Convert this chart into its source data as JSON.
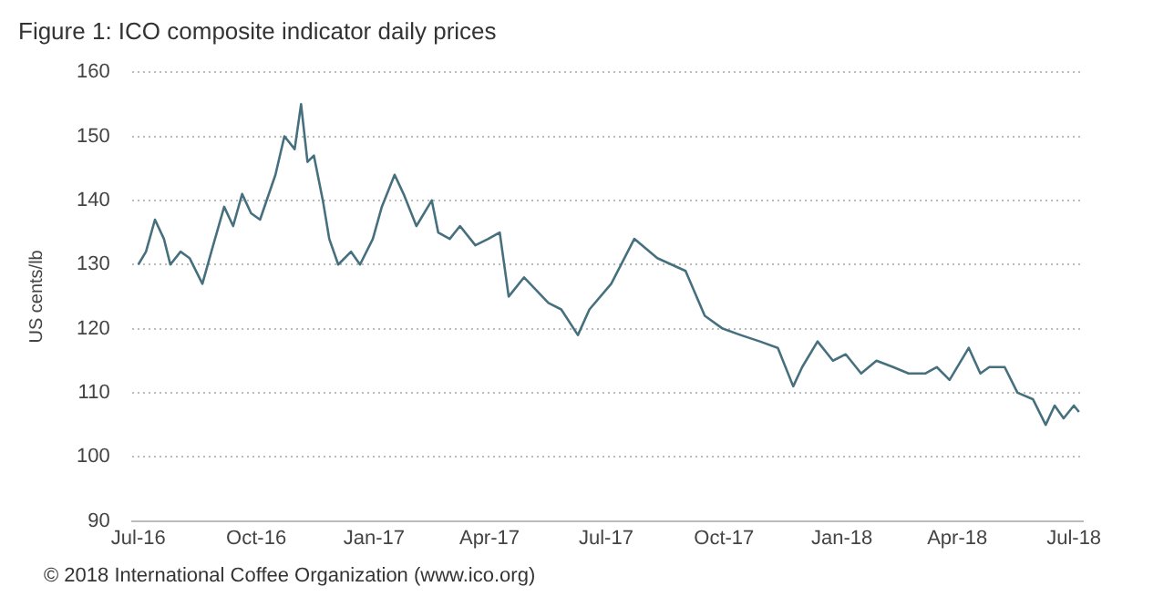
{
  "chart_data": {
    "type": "line",
    "title": "Figure 1: ICO composite indicator daily prices",
    "ylabel": "US cents/lb",
    "annotations": [
      "© 2018 International Coffee Organization (www.ico.org)"
    ],
    "x": [
      "2016-07-01",
      "2016-07-07",
      "2016-07-14",
      "2016-07-21",
      "2016-07-26",
      "2016-08-03",
      "2016-08-10",
      "2016-08-20",
      "2016-08-27",
      "2016-09-06",
      "2016-09-13",
      "2016-09-20",
      "2016-09-27",
      "2016-10-04",
      "2016-10-16",
      "2016-10-23",
      "2016-10-31",
      "2016-11-05",
      "2016-11-10",
      "2016-11-15",
      "2016-11-22",
      "2016-11-27",
      "2016-12-04",
      "2016-12-14",
      "2016-12-21",
      "2016-12-31",
      "2017-01-07",
      "2017-01-17",
      "2017-01-24",
      "2017-02-03",
      "2017-02-15",
      "2017-02-20",
      "2017-03-01",
      "2017-03-09",
      "2017-03-21",
      "2017-03-31",
      "2017-04-09",
      "2017-04-16",
      "2017-04-28",
      "2017-05-17",
      "2017-05-27",
      "2017-06-09",
      "2017-06-18",
      "2017-07-05",
      "2017-07-23",
      "2017-08-10",
      "2017-09-01",
      "2017-09-16",
      "2017-09-30",
      "2017-10-14",
      "2017-10-29",
      "2017-11-12",
      "2017-11-24",
      "2017-12-01",
      "2017-12-13",
      "2017-12-25",
      "2018-01-04",
      "2018-01-16",
      "2018-01-28",
      "2018-02-10",
      "2018-02-22",
      "2018-03-07",
      "2018-03-16",
      "2018-03-26",
      "2018-04-10",
      "2018-04-19",
      "2018-04-26",
      "2018-05-08",
      "2018-05-18",
      "2018-05-30",
      "2018-06-09",
      "2018-06-16",
      "2018-06-23",
      "2018-07-01",
      "2018-07-05"
    ],
    "series": [
      {
        "color": "#46707e",
        "values": [
          130,
          132,
          137,
          134,
          130,
          132,
          131,
          127,
          132,
          139,
          136,
          141,
          138,
          137,
          144,
          150,
          148,
          155,
          146,
          147,
          140,
          134,
          130,
          132,
          130,
          134,
          139,
          144,
          141,
          136,
          140,
          135,
          134,
          136,
          133,
          134,
          135,
          125,
          128,
          124,
          123,
          119,
          123,
          127,
          134,
          131,
          129,
          122,
          120,
          119,
          118,
          117,
          111,
          114,
          118,
          115,
          116,
          113,
          115,
          114,
          113,
          113,
          114,
          112,
          117,
          113,
          114,
          114,
          110,
          109,
          105,
          108,
          106,
          108,
          107
        ]
      }
    ],
    "xlim": [
      "2016-06-26",
      "2018-07-08"
    ],
    "xticks": [
      {
        "value": "2016-07-01",
        "label": "Jul-16"
      },
      {
        "value": "2016-10-01",
        "label": "Oct-16"
      },
      {
        "value": "2017-01-01",
        "label": "Jan-17"
      },
      {
        "value": "2017-04-01",
        "label": "Apr-17"
      },
      {
        "value": "2017-07-01",
        "label": "Jul-17"
      },
      {
        "value": "2017-10-01",
        "label": "Oct-17"
      },
      {
        "value": "2018-01-01",
        "label": "Jan-18"
      },
      {
        "value": "2018-04-01",
        "label": "Apr-18"
      },
      {
        "value": "2018-07-01",
        "label": "Jul-18"
      }
    ],
    "ylim": [
      90,
      160
    ],
    "yticks": [
      90,
      100,
      110,
      120,
      130,
      140,
      150,
      160
    ],
    "grid": "y"
  }
}
